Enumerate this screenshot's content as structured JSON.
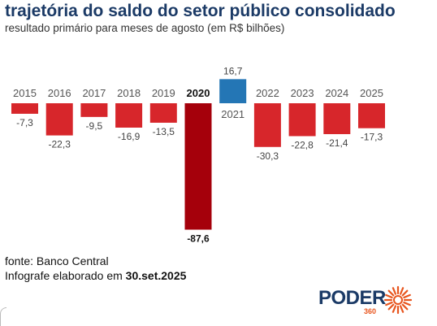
{
  "header": {
    "title": "trajetória do saldo do setor público consolidado",
    "subtitle": "resultado primário para meses de agosto (em R$ bilhões)"
  },
  "footer": {
    "source": "fonte: Banco Central",
    "credit_prefix": "Infografe elaborado em",
    "credit_date": "30.set.2025"
  },
  "logo": {
    "word": "PODER",
    "sub": "360",
    "icon": "sunburst-logo-icon"
  },
  "colors": {
    "negative": "#d7262b",
    "highlight": "#a5000b",
    "positive": "#2476b5",
    "title": "#1b3a66",
    "logo_accent": "#e8551e"
  },
  "chart_data": {
    "type": "bar",
    "categories": [
      "2015",
      "2016",
      "2017",
      "2018",
      "2019",
      "2020",
      "2021",
      "2022",
      "2023",
      "2024",
      "2025"
    ],
    "values": [
      -7.3,
      -22.3,
      -9.5,
      -16.9,
      -13.5,
      -87.6,
      16.7,
      -30.3,
      -22.8,
      -21.4,
      -17.3
    ],
    "value_labels": [
      "-7,3",
      "-22,3",
      "-9,5",
      "-16,9",
      "-13,5",
      "-87,6",
      "16,7",
      "-30,3",
      "-22,8",
      "-21,4",
      "-17,3"
    ],
    "highlight_category": "2020",
    "title": "",
    "xlabel": "",
    "ylabel": "",
    "grid": false,
    "legend": "none"
  }
}
